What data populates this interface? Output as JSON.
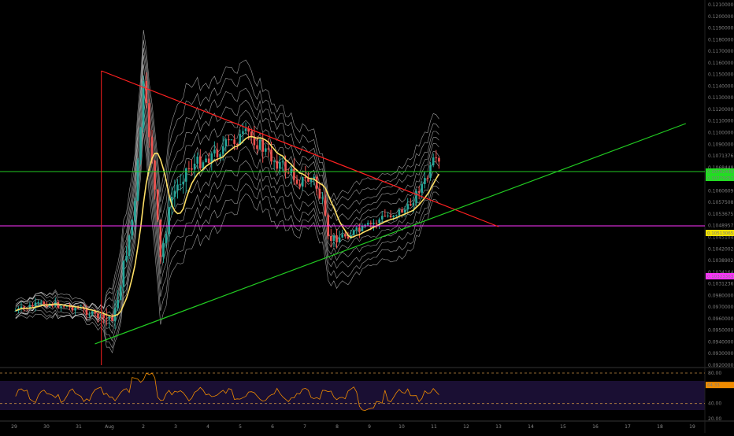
{
  "chart_data": {
    "type": "line",
    "main": {
      "x_ticks": [
        "29",
        "30",
        "31",
        "Aug",
        "2",
        "3",
        "4",
        "5",
        "6",
        "7",
        "8",
        "9",
        "10",
        "11",
        "12",
        "13",
        "14",
        "15",
        "16",
        "17",
        "18",
        "19"
      ],
      "y_ticks": [
        "0.12100000",
        "0.12000000",
        "0.11900000",
        "0.11800000",
        "0.11700000",
        "0.11600000",
        "0.11500000",
        "0.11400000",
        "0.11300000",
        "0.11200000",
        "0.11100000",
        "0.11000000",
        "0.10900000",
        "0.10713768",
        "0.10684486",
        "0.10637106",
        "0.10606096",
        "0.10575085",
        "0.10536755",
        "0.10489575",
        "0.10451044",
        "0.10420024",
        "0.10389024",
        "0.10341644",
        "0.10312362",
        "0.09800000",
        "0.09700000",
        "0.09600000",
        "0.09500000",
        "0.09400000",
        "0.09300000",
        "0.09200000"
      ],
      "price_tags": [
        {
          "label": "0.10792430",
          "bg": "#22dd22",
          "fg": "#000000"
        },
        {
          "label": "0.10779257",
          "bg": "#22dd22",
          "fg": "#000000"
        },
        {
          "label": "0.10513065",
          "bg": "#f0e000",
          "fg": "#000000"
        },
        {
          "label": "0.10323363",
          "bg": "#ff33ff",
          "fg": "#000000"
        }
      ],
      "colors": {
        "up": "#26a69a",
        "down": "#ef5350",
        "ribbon": "#d0d0d0",
        "ma": "#ffe066",
        "resistance_line": "#ff2020",
        "support_line": "#22cc22",
        "h_green": "#22cc22",
        "h_magenta": "#ff33ff"
      }
    },
    "rsi": {
      "y_ticks": [
        "80.00",
        "40.00",
        "20.00"
      ],
      "price_tag": {
        "label": "64.33",
        "bg": "#f08c00",
        "fg": "#000000"
      },
      "colors": {
        "line": "#f08c00",
        "band": "#1a0f33",
        "guide": "#c28a42"
      }
    }
  }
}
